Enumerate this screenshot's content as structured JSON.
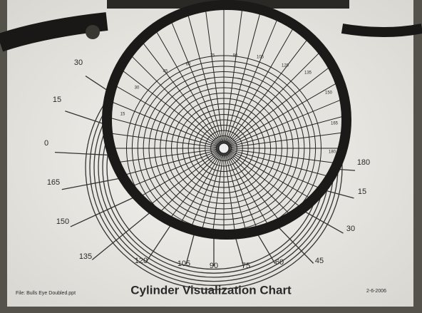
{
  "chart": {
    "title": "Cylinder Visualization Chart",
    "file": "File: Bulls Eye Doubled.ppt",
    "date": "2-6-2006"
  },
  "outer_labels": [
    "30",
    "15",
    "0",
    "165",
    "150",
    "135",
    "120",
    "105",
    "90",
    "75",
    "60",
    "45",
    "30",
    "15",
    "180"
  ],
  "lens_labels": [
    "15",
    "30",
    "45",
    "60",
    "75",
    "90",
    "105",
    "120",
    "135",
    "150",
    "165",
    "180"
  ]
}
